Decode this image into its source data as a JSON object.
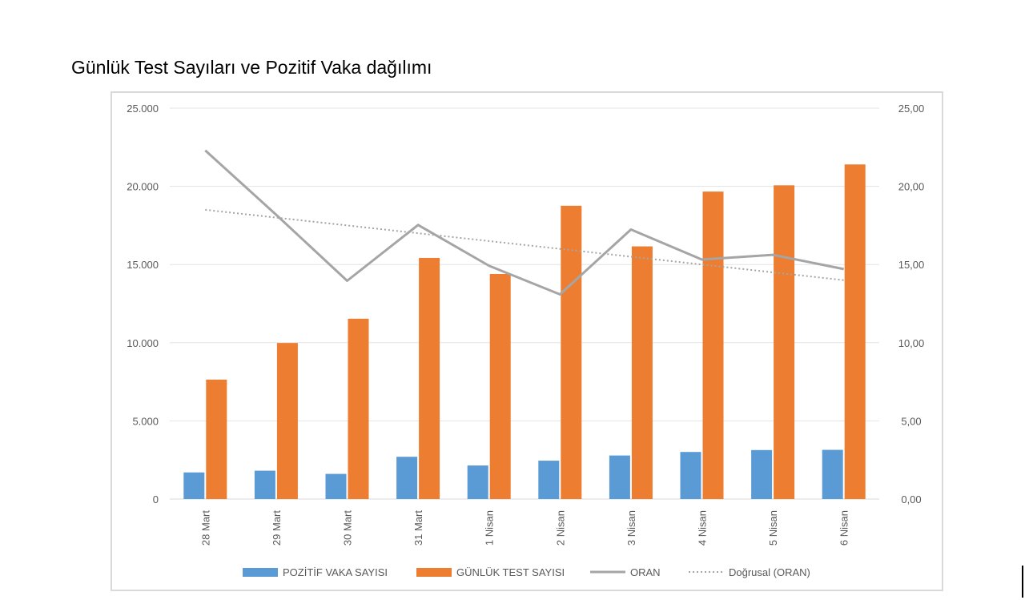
{
  "page": {
    "title": "Günlük Test Sayıları ve Pozitif Vaka dağılımı"
  },
  "chart_data": {
    "type": "bar",
    "title": "Günlük Test Sayıları ve Pozitif Vaka dağılımı",
    "categories": [
      "28 Mart",
      "29 Mart",
      "30 Mart",
      "31 Mart",
      "1 Nisan",
      "2 Nisan",
      "3 Nisan",
      "4 Nisan",
      "5 Nisan",
      "6 Nisan"
    ],
    "series": [
      {
        "name": "POZİTİF VAKA SAYISI",
        "type": "bar",
        "axis": "left",
        "color": "#5b9bd5",
        "values": [
          1704,
          1815,
          1610,
          2704,
          2148,
          2456,
          2786,
          3013,
          3135,
          3148
        ]
      },
      {
        "name": "GÜNLÜK TEST SAYISI",
        "type": "bar",
        "axis": "left",
        "color": "#ed7d31",
        "values": [
          7641,
          9982,
          11535,
          15422,
          14396,
          18757,
          16160,
          19664,
          20065,
          21400
        ]
      },
      {
        "name": "ORAN",
        "type": "line",
        "axis": "right",
        "color": "#a5a5a5",
        "values": [
          22.3,
          18.18,
          13.96,
          17.53,
          14.92,
          13.09,
          17.24,
          15.32,
          15.62,
          14.71
        ]
      },
      {
        "name": "Doğrusal (ORAN)",
        "type": "trendline",
        "axis": "right",
        "color": "#a5a5a5",
        "dashed": true,
        "values": [
          18.5,
          18.0,
          17.5,
          17.0,
          16.5,
          16.0,
          15.5,
          15.0,
          14.5,
          14.0
        ]
      }
    ],
    "left_axis": {
      "ylim": [
        0,
        25000
      ],
      "ticks": [
        0,
        5000,
        10000,
        15000,
        20000,
        25000
      ],
      "tick_labels": [
        "0",
        "5.000",
        "10.000",
        "15.000",
        "20.000",
        "25.000"
      ]
    },
    "right_axis": {
      "ylim": [
        0,
        25
      ],
      "ticks": [
        0,
        5,
        10,
        15,
        20,
        25
      ],
      "tick_labels": [
        "0,00",
        "5,00",
        "10,00",
        "15,00",
        "20,00",
        "25,00"
      ]
    },
    "grid": true,
    "legend_position": "bottom",
    "xlabel": "",
    "ylabel": ""
  }
}
